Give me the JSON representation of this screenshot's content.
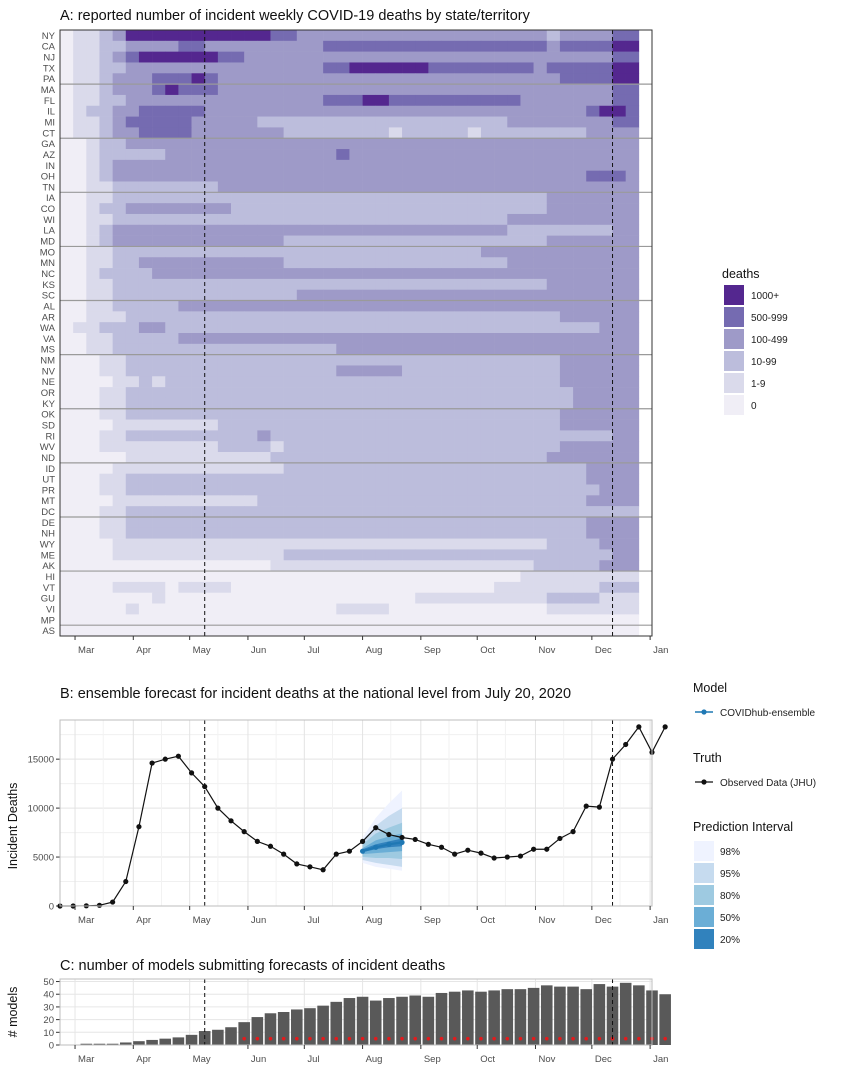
{
  "chart_data": [
    {
      "id": "A",
      "type": "heatmap",
      "title": "A: reported number of incident weekly COVID-19 deaths by state/territory",
      "x_start": "2020-02-22",
      "week_count": 44,
      "month_ticks": [
        "Mar",
        "Apr",
        "May",
        "Jun",
        "Jul",
        "Aug",
        "Sep",
        "Oct",
        "Nov",
        "Dec",
        "Jan"
      ],
      "rows": [
        "NY",
        "CA",
        "NJ",
        "TX",
        "PA",
        "MA",
        "FL",
        "IL",
        "MI",
        "CT",
        "GA",
        "AZ",
        "IN",
        "OH",
        "TN",
        "IA",
        "CO",
        "WI",
        "LA",
        "MD",
        "MO",
        "MN",
        "NC",
        "KS",
        "SC",
        "AL",
        "AR",
        "WA",
        "VA",
        "MS",
        "NM",
        "NV",
        "NE",
        "OR",
        "KY",
        "OK",
        "SD",
        "RI",
        "WV",
        "ND",
        "ID",
        "UT",
        "PR",
        "MT",
        "DC",
        "DE",
        "NH",
        "WY",
        "ME",
        "AK",
        "HI",
        "VT",
        "GU",
        "VI",
        "MP",
        "AS"
      ],
      "row_groups_every": 5,
      "categories": [
        "0",
        "1-9",
        "10-99",
        "100-499",
        "500-999",
        "1000+"
      ],
      "colors": [
        "#f0eef6",
        "#dadaeb",
        "#bcbddc",
        "#9e9ac8",
        "#756bb1",
        "#54278f"
      ],
      "legend_title": "deaths",
      "cells": [
        "0 1 1 2 3 5 5 5 5 5 5 5 5 5 5 5 4 4 3 3 3 3 3 3 3 3 3 3 3 3 3 3 3 3 3 3 3 2 3 3 3 3 4 4",
        "0 1 1 2 2 3 3 3 3 4 4 3 3 3 3 3 3 3 3 3 4 4 4 4 4 4 4 4 4 4 4 4 4 4 4 4 4 3 4 4 4 4 5 5",
        "0 1 1 2 3 4 5 5 5 5 5 5 4 4 3 3 3 3 3 3 3 3 3 3 3 3 3 3 3 3 3 3 3 3 3 3 3 3 3 3 3 3 4 4",
        "0 1 1 2 2 3 3 3 3 3 3 3 3 3 3 3 3 3 3 3 4 4 5 5 5 5 5 5 4 4 4 4 4 4 4 4 3 4 4 4 4 4 5 5",
        "0 1 1 2 3 3 3 4 4 4 5 4 3 3 3 3 3 3 3 3 3 3 3 3 3 3 3 3 3 3 3 3 3 3 3 3 3 3 4 4 4 4 5 5",
        "0 1 1 2 3 3 3 4 5 4 4 4 3 3 3 3 3 3 3 3 3 3 3 3 3 3 3 3 3 3 3 3 3 3 3 3 3 3 3 3 3 3 4 4",
        "0 1 1 2 2 3 3 3 3 3 3 3 3 3 3 3 3 3 3 3 4 4 4 5 5 4 4 4 4 4 4 4 4 4 4 3 3 3 3 3 3 3 4 4",
        "0 1 2 2 3 3 4 4 4 4 4 3 3 3 3 3 3 3 3 3 3 3 3 3 3 3 3 3 3 3 3 3 3 3 3 3 3 3 3 3 4 5 5 4",
        "0 1 1 2 3 4 4 4 4 4 3 3 3 3 3 2 2 2 2 2 2 2 2 2 2 2 2 2 2 2 2 2 2 2 3 3 3 3 3 3 3 3 4 4",
        "0 1 1 2 3 3 4 4 4 4 3 3 3 3 3 3 3 2 2 2 2 2 2 2 2 1 2 2 2 2 2 1 2 2 2 2 2 2 2 2 3 3 3 3",
        "0 0 1 2 2 3 3 3 3 3 3 3 3 3 3 3 3 3 3 3 3 3 3 3 3 3 3 3 3 3 3 3 3 3 3 3 3 3 3 3 3 3 3 3",
        "0 0 1 2 2 2 2 2 3 3 3 3 3 3 3 3 3 3 3 3 3 4 3 3 3 3 3 3 3 3 3 3 3 3 3 3 3 3 3 3 3 3 3 3",
        "0 0 1 2 3 3 3 3 3 3 3 3 3 3 3 3 3 3 3 3 3 3 3 3 3 3 3 3 3 3 3 3 3 3 3 3 3 3 3 3 3 3 3 3",
        "0 0 1 2 3 3 3 3 3 3 3 3 3 3 3 3 3 3 3 3 3 3 3 3 3 3 3 3 3 3 3 3 3 3 3 3 3 3 3 3 4 4 4 3",
        "0 0 1 1 2 2 2 2 2 2 2 2 3 3 3 3 3 3 3 3 3 3 3 3 3 3 3 3 3 3 3 3 3 3 3 3 3 3 3 3 3 3 3 3",
        "0 0 1 1 2 2 2 2 2 2 2 2 2 2 2 2 2 2 2 2 2 2 2 2 2 2 2 2 2 2 2 2 2 2 2 2 2 3 3 3 3 3 3 3",
        "0 0 1 2 2 3 3 3 3 3 3 3 3 2 2 2 2 2 2 2 2 2 2 2 2 2 2 2 2 2 2 2 2 2 2 2 2 3 3 3 3 3 3 3",
        "0 0 1 1 2 2 2 2 2 2 2 2 2 2 2 2 2 2 2 2 2 2 2 2 2 2 2 2 2 2 2 2 2 2 3 3 3 3 3 3 3 3 3 3",
        "0 0 1 2 3 3 3 3 3 3 3 3 3 3 3 3 3 3 3 3 3 3 3 3 3 3 3 3 3 3 3 3 3 3 2 2 2 2 2 2 2 2 3 3",
        "0 0 1 2 3 3 3 3 3 3 3 3 3 3 3 3 3 2 2 2 2 2 2 2 2 2 2 2 2 2 2 2 2 2 2 2 2 3 3 3 3 3 3 3",
        "0 0 1 1 2 2 2 2 2 2 2 2 2 2 2 2 2 2 2 2 2 2 2 2 2 2 2 2 2 2 2 2 3 3 3 3 3 3 3 3 3 3 3 3",
        "0 0 1 1 2 2 3 3 3 3 3 3 3 3 3 3 3 2 2 2 2 2 2 2 2 2 2 2 2 2 2 2 2 2 3 3 3 3 3 3 3 3 3 3",
        "0 0 1 2 2 2 2 3 3 3 3 3 3 3 3 3 3 3 3 3 3 3 3 3 3 3 3 3 3 3 3 3 3 3 3 3 3 3 3 3 3 3 3 3",
        "0 0 1 1 2 2 2 2 2 2 2 2 2 2 2 2 2 2 2 2 2 2 2 2 2 2 2 2 2 2 2 2 2 2 2 2 2 3 3 3 3 3 3 3",
        "0 0 1 1 2 2 2 2 2 2 2 2 2 2 2 2 2 2 3 3 3 3 3 3 3 3 3 3 3 3 3 3 3 3 3 3 3 3 3 3 3 3 3 3",
        "0 0 1 1 2 2 2 2 2 3 3 3 3 3 3 3 3 3 3 3 3 3 3 3 3 3 3 3 3 3 3 3 3 3 3 3 3 3 3 3 3 3 3 3",
        "0 0 1 1 1 2 2 2 2 2 2 2 2 2 2 2 2 2 2 2 2 2 2 2 2 2 2 2 2 2 2 2 2 2 2 2 2 2 3 3 3 3 3 3",
        "0 1 1 2 2 2 3 3 2 2 2 2 2 2 2 2 2 2 2 2 2 2 2 2 2 2 2 2 2 2 2 2 2 2 2 2 2 2 2 2 2 3 3 3",
        "0 0 1 1 2 2 2 2 2 3 3 3 3 3 3 3 3 3 3 3 3 3 3 3 3 3 3 3 3 3 3 3 3 3 3 3 3 3 3 3 3 3 3 3",
        "0 0 1 1 2 2 2 2 2 2 2 2 2 2 2 2 2 2 2 2 2 3 3 3 3 3 3 3 3 3 3 3 3 3 3 3 3 3 3 3 3 3 3 3",
        "0 0 0 1 1 2 2 2 2 2 2 2 2 2 2 2 2 2 2 2 2 2 2 2 2 2 2 2 2 2 2 2 2 2 2 2 2 2 3 3 3 3 3 3",
        "0 0 0 1 1 2 2 2 2 2 2 2 2 2 2 2 2 2 2 2 2 3 3 3 3 3 2 2 2 2 2 2 2 2 2 2 2 2 3 3 3 3 3 3",
        "0 0 0 0 1 1 2 1 2 2 2 2 2 2 2 2 2 2 2 2 2 2 2 2 2 2 2 2 2 2 2 2 2 2 2 2 2 2 3 3 3 3 3 3",
        "0 0 0 1 1 2 2 2 2 2 2 2 2 2 2 2 2 2 2 2 2 2 2 2 2 2 2 2 2 2 2 2 2 2 2 2 2 2 2 3 3 3 3 3",
        "0 0 0 1 1 2 2 2 2 2 2 2 2 2 2 2 2 2 2 2 2 2 2 2 2 2 2 2 2 2 2 2 2 2 2 2 2 2 2 3 3 3 3 3",
        "0 0 0 1 1 2 2 2 2 2 2 2 2 2 2 2 2 2 2 2 2 2 2 2 2 2 2 2 2 2 2 2 2 2 2 2 2 2 3 3 3 3 3 3",
        "0 0 0 0 1 1 1 1 1 1 1 1 2 2 2 2 2 2 2 2 2 2 2 2 2 2 2 2 2 2 2 2 2 2 2 2 2 2 3 3 3 3 3 3",
        "0 0 0 1 1 2 2 2 2 2 2 2 2 2 2 3 2 2 2 2 2 2 2 2 2 2 2 2 2 2 2 2 2 2 2 2 2 2 2 2 2 2 3 3",
        "0 0 0 1 1 1 1 1 1 1 1 1 2 2 2 2 1 2 2 2 2 2 2 2 2 2 2 2 2 2 2 2 2 2 2 2 2 2 3 3 3 3 3 3",
        "0 0 0 0 0 1 1 1 1 1 1 1 1 1 1 1 2 2 2 2 2 2 2 2 2 2 2 2 2 2 2 2 2 2 2 2 2 3 3 3 3 3 3 3",
        "0 0 0 0 1 1 1 1 1 1 1 1 1 1 1 1 1 2 2 2 2 2 2 2 2 2 2 2 2 2 2 2 2 2 2 2 2 2 2 2 3 3 3 3",
        "0 0 0 1 1 2 2 2 2 2 2 2 2 2 2 2 2 2 2 2 2 2 2 2 2 2 2 2 2 2 2 2 2 2 2 2 2 2 2 2 3 3 3 3",
        "0 0 0 1 1 2 2 2 2 2 2 2 2 2 2 2 2 2 2 2 2 2 2 2 2 2 2 2 2 2 2 2 2 2 2 2 2 2 2 2 2 3 3 3",
        "0 0 0 0 1 1 1 1 1 1 1 1 1 1 1 2 2 2 2 2 2 2 2 2 2 2 2 2 2 2 2 2 2 2 2 2 2 2 2 2 3 3 3 3",
        "0 0 0 1 1 2 2 2 2 2 2 2 2 2 2 2 2 2 2 2 2 2 2 2 2 2 2 2 2 2 2 2 2 2 2 2 2 2 2 2 2 2 2 2",
        "0 0 0 1 1 2 2 2 2 2 2 2 2 2 2 2 2 2 2 2 2 2 2 2 2 2 2 2 2 2 2 2 2 2 2 2 2 2 2 2 3 3 3 3",
        "0 0 0 1 1 2 2 2 2 2 2 2 2 2 2 2 2 2 2 2 2 2 2 2 2 2 2 2 2 2 2 2 2 2 2 2 2 2 2 2 3 3 3 3",
        "0 0 0 0 1 1 1 1 1 1 1 1 1 1 1 1 1 1 1 1 1 1 1 1 1 1 1 1 1 1 1 1 1 1 1 1 1 2 2 2 2 3 3 3",
        "0 0 0 0 1 1 1 1 1 1 1 1 1 1 1 1 1 2 2 2 2 2 2 2 2 2 2 2 2 2 2 2 2 2 2 2 2 2 2 2 2 2 3 3",
        "0 0 0 0 0 0 0 0 0 0 0 0 0 0 0 0 1 1 1 1 1 1 1 1 1 1 1 1 1 1 1 1 1 1 1 1 2 2 2 2 2 3 3 3",
        "0 0 0 0 0 0 0 0 0 0 0 0 0 0 0 0 0 0 0 0 0 0 0 0 0 0 0 0 0 0 0 0 0 0 0 1 1 1 1 1 1 1 1 1",
        "0 0 0 0 1 1 1 1 0 1 1 1 1 0 0 0 0 0 0 0 0 0 0 0 0 0 0 0 0 0 0 0 0 1 1 1 1 1 1 1 1 2 2 2",
        "0 0 0 0 0 0 0 1 0 0 0 0 0 0 0 0 0 0 0 0 0 0 0 0 0 0 0 1 1 1 1 1 1 1 1 1 1 2 2 2 2 1 1 1",
        "0 0 0 0 0 1 0 0 0 0 0 0 0 0 0 0 0 0 0 0 0 1 1 1 1 0 0 0 0 0 0 0 0 0 0 0 0 1 1 1 1 1 1 1",
        "0 0 0 0 0 0 0 0 0 0 0 0 0 0 0 0 0 0 0 0 0 0 0 0 0 0 0 0 0 0 0 0 0 0 0 0 0 0 0 0 0 0 0 0",
        "0 0 0 0 0 0 0 0 0 0 0 0 0 0 0 0 0 0 0 0 0 0 0 0 0 0 0 0 0 0 0 0 0 0 0 0 0 0 0 0 0 0 0 0"
      ],
      "vlines": [
        "2020-05-09",
        "2020-12-12"
      ],
      "legend": [
        "1000+",
        "500-999",
        "100-499",
        "10-99",
        "1-9",
        "0"
      ]
    },
    {
      "id": "B",
      "type": "line",
      "title": "B: ensemble forecast for incident deaths at the national level from July 20, 2020",
      "ylabel": "Incident Deaths",
      "ylim": [
        0,
        19000
      ],
      "yticks": [
        0,
        5000,
        10000,
        15000
      ],
      "x_start": "2020-02-22",
      "observed_label": "Observed Data (JHU)",
      "observed": [
        0,
        0,
        20,
        70,
        400,
        2500,
        8100,
        14600,
        15000,
        15300,
        13600,
        12200,
        10000,
        8700,
        7600,
        6600,
        6100,
        5300,
        4300,
        4000,
        3700,
        5300,
        5600,
        6600,
        8000,
        7300,
        7000,
        6800,
        6300,
        6000,
        5300,
        5700,
        5400,
        4900,
        5000,
        5100,
        5800,
        5800,
        6900,
        7600,
        10200,
        10100,
        15000,
        16500,
        18300,
        15700,
        18300
      ],
      "forecast": {
        "model": "COVIDhub-ensemble",
        "start_week": 23,
        "median": [
          5600,
          6000,
          6300,
          6500
        ],
        "intervals": [
          {
            "level": "98%",
            "lo": [
              4400,
              4000,
              3800,
              3600
            ],
            "hi": [
              7000,
              9000,
              10500,
              11800
            ]
          },
          {
            "level": "95%",
            "lo": [
              4700,
              4400,
              4200,
              4000
            ],
            "hi": [
              6700,
              8200,
              9200,
              10000
            ]
          },
          {
            "level": "80%",
            "lo": [
              5000,
              4900,
              4900,
              4800
            ],
            "hi": [
              6300,
              7400,
              8000,
              8500
            ]
          },
          {
            "level": "50%",
            "lo": [
              5300,
              5400,
              5500,
              5600
            ],
            "hi": [
              5900,
              6700,
              7100,
              7400
            ]
          },
          {
            "level": "20%",
            "lo": [
              5500,
              5800,
              6000,
              6100
            ],
            "hi": [
              5800,
              6300,
              6600,
              6900
            ]
          }
        ],
        "colors": [
          "#eff3ff",
          "#c6dbef",
          "#9ecae1",
          "#6baed6",
          "#3182bd"
        ],
        "line_color": "#1f78b4"
      },
      "vlines": [
        "2020-05-09",
        "2020-12-12"
      ],
      "month_ticks": [
        "Mar",
        "Apr",
        "May",
        "Jun",
        "Jul",
        "Aug",
        "Sep",
        "Oct",
        "Nov",
        "Dec",
        "Jan"
      ]
    },
    {
      "id": "C",
      "type": "bar",
      "title": "C: number of models submitting forecasts of incident deaths",
      "ylabel": "# models",
      "ylim": [
        0,
        52
      ],
      "yticks": [
        0,
        10,
        20,
        30,
        40,
        50
      ],
      "x_start": "2020-03-07",
      "values": [
        1,
        1,
        1,
        2,
        3,
        4,
        5,
        6,
        8,
        11,
        12,
        14,
        18,
        22,
        25,
        26,
        28,
        29,
        31,
        34,
        37,
        38,
        35,
        37,
        38,
        39,
        38,
        41,
        42,
        43,
        42,
        43,
        44,
        44,
        45,
        47,
        46,
        46,
        44,
        48,
        46,
        49,
        47,
        43,
        40
      ],
      "markers_from_week": 12,
      "markers_to_week": 44,
      "marker_value": 5,
      "bar_color": "#595959",
      "marker_color": "#e41a1c",
      "vlines": [
        "2020-05-09",
        "2020-12-12"
      ],
      "month_ticks": [
        "Mar",
        "Apr",
        "May",
        "Jun",
        "Jul",
        "Aug",
        "Sep",
        "Oct",
        "Nov",
        "Dec",
        "Jan"
      ]
    }
  ],
  "legend_B": {
    "model_title": "Model",
    "model_item": "COVIDhub-ensemble",
    "truth_title": "Truth",
    "truth_item": "Observed Data (JHU)",
    "pi_title": "Prediction Interval",
    "pi_items": [
      "98%",
      "95%",
      "80%",
      "50%",
      "20%"
    ]
  }
}
